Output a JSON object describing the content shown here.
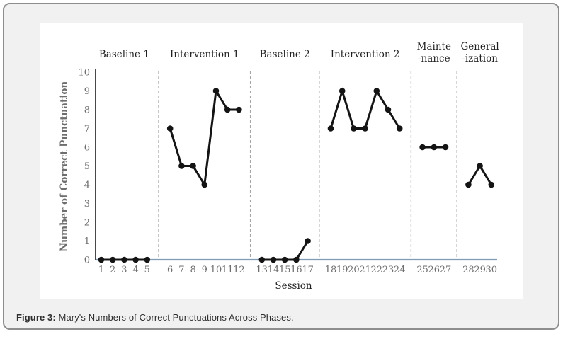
{
  "figure": {
    "caption_prefix": "Figure 3:",
    "caption_text": " Mary's Numbers of Correct Punctuations Across Phases."
  },
  "chart_data": {
    "type": "line",
    "title": "",
    "xlabel": "Session",
    "ylabel": "Number of Correct Punctuation",
    "ylim": [
      0,
      10
    ],
    "ytick_step": 1,
    "x_range": [
      1,
      30
    ],
    "grid": false,
    "legend": "none",
    "marker": "circle",
    "phase_separator_style": "dashed",
    "phases": [
      {
        "label_lines": [
          "Baseline 1"
        ],
        "sessions": [
          1,
          2,
          3,
          4,
          5
        ],
        "values": [
          0,
          0,
          0,
          0,
          0
        ]
      },
      {
        "label_lines": [
          "Intervention 1"
        ],
        "sessions": [
          6,
          7,
          8,
          9,
          10,
          11,
          12
        ],
        "values": [
          7,
          5,
          5,
          4,
          9,
          8,
          8
        ]
      },
      {
        "label_lines": [
          "Baseline 2"
        ],
        "sessions": [
          13,
          14,
          15,
          16,
          17
        ],
        "values": [
          0,
          0,
          0,
          0,
          1
        ]
      },
      {
        "label_lines": [
          "Intervention 2"
        ],
        "sessions": [
          18,
          19,
          20,
          21,
          22,
          23,
          24
        ],
        "values": [
          7,
          9,
          7,
          7,
          9,
          8,
          7
        ]
      },
      {
        "label_lines": [
          "Mainte",
          "-nance"
        ],
        "sessions": [
          25,
          26,
          27
        ],
        "values": [
          6,
          6,
          6
        ]
      },
      {
        "label_lines": [
          "General",
          "-ization"
        ],
        "sessions": [
          28,
          29,
          30
        ],
        "values": [
          4,
          5,
          4
        ]
      }
    ],
    "colors": {
      "series": "#141414",
      "x_axis": "#7f9bb5",
      "y_axis": "#1a1a1a",
      "separator": "#a6a6a6",
      "tick_text": "#6e6e6e",
      "phase_text": "#1f1f1f",
      "plot_bg": "#ffffff"
    }
  }
}
